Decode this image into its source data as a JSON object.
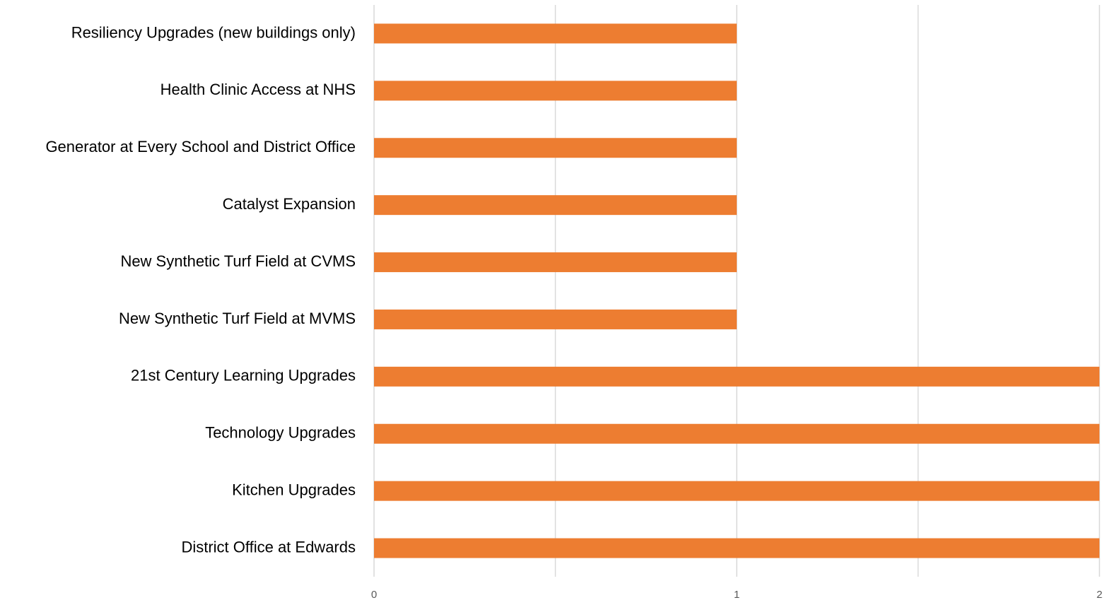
{
  "chart_data": {
    "type": "barh",
    "categories": [
      "Resiliency Upgrades (new buildings only)",
      "Health Clinic Access at NHS",
      "Generator at Every School and District Office",
      "Catalyst Expansion",
      "New Synthetic Turf Field at CVMS",
      "New Synthetic Turf Field at MVMS",
      "21st Century Learning Upgrades",
      "Technology Upgrades",
      "Kitchen Upgrades",
      "District Office at Edwards"
    ],
    "values": [
      1,
      1,
      1,
      1,
      1,
      1,
      2,
      2,
      2,
      2
    ],
    "color": "#ed7d31",
    "xlim": [
      0,
      2
    ],
    "xticks": [
      0,
      1,
      2
    ],
    "xgrid": [
      0,
      0.5,
      1,
      1.5,
      2
    ],
    "grid": true
  }
}
